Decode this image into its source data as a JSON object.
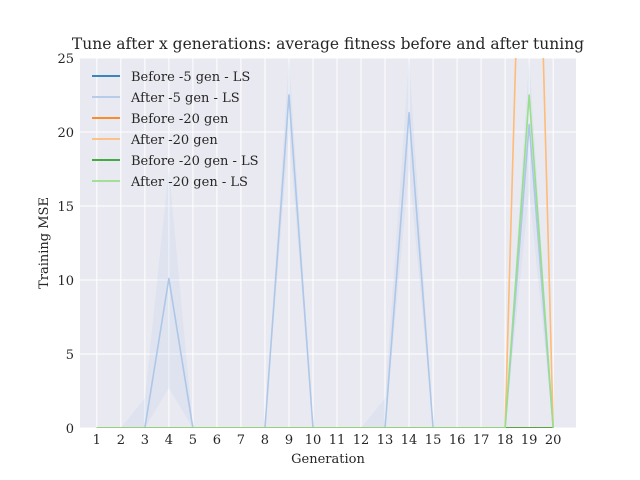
{
  "chart_data": {
    "type": "line",
    "title": "Tune after x generations: average fitness before and after tuning",
    "xlabel": "Generation",
    "ylabel": "Training MSE",
    "x": [
      1,
      2,
      3,
      4,
      5,
      6,
      7,
      8,
      9,
      10,
      11,
      12,
      13,
      14,
      15,
      16,
      17,
      18,
      19,
      20
    ],
    "xlim": [
      0.3,
      20.95
    ],
    "ylim": [
      0,
      25
    ],
    "yticks": [
      0,
      5,
      10,
      15,
      20,
      25
    ],
    "grid": true,
    "legend_position": "top-left",
    "background": "#e9e9f1",
    "series": [
      {
        "name": "Before -5 gen - LS",
        "color": "#1f77b4",
        "values": [
          0,
          0,
          0,
          0,
          0,
          0,
          0,
          0,
          0,
          0,
          0,
          0,
          0,
          0,
          0,
          0,
          0,
          0,
          0,
          0
        ]
      },
      {
        "name": "After -5 gen - LS",
        "color": "#aec7e8",
        "values": [
          0,
          0,
          0,
          10.1,
          0,
          0,
          0,
          0,
          22.5,
          0,
          0,
          0,
          0,
          21.3,
          0,
          0,
          0,
          0,
          20.5,
          0
        ],
        "band_upper": [
          0,
          0,
          2,
          17.5,
          0,
          0,
          0,
          0,
          25,
          0,
          0,
          0,
          2,
          25,
          0,
          0,
          0,
          0,
          25,
          0
        ],
        "band_lower": [
          0,
          0,
          0,
          2.7,
          0,
          0,
          0,
          0,
          20,
          0,
          0,
          0,
          0,
          17.5,
          0,
          0,
          0,
          0,
          16,
          0
        ]
      },
      {
        "name": "Before -20 gen",
        "color": "#ff7f0e",
        "values": [
          0,
          0,
          0,
          0,
          0,
          0,
          0,
          0,
          0,
          0,
          0,
          0,
          0,
          0,
          0,
          0,
          0,
          0,
          0,
          0
        ]
      },
      {
        "name": "After -20 gen",
        "color": "#ffbb78",
        "values": [
          0,
          0,
          0,
          0,
          0,
          0,
          0,
          0,
          0,
          0,
          0,
          0,
          0,
          0,
          0,
          0,
          0,
          0,
          0,
          0
        ],
        "segments": [
          [
            [
              18,
              0
            ],
            [
              18.45,
              25.6
            ]
          ],
          [
            [
              19.58,
              25.6
            ],
            [
              20,
              0
            ]
          ]
        ]
      },
      {
        "name": "Before -20 gen - LS",
        "color": "#2ca02c",
        "values": [
          0,
          0,
          0,
          0,
          0,
          0,
          0,
          0,
          0,
          0,
          0,
          0,
          0,
          0,
          0,
          0,
          0,
          0,
          0,
          0
        ]
      },
      {
        "name": "After -20 gen - LS",
        "color": "#98df8a",
        "values": [
          0,
          0,
          0,
          0,
          0,
          0,
          0,
          0,
          0,
          0,
          0,
          0,
          0,
          0,
          0,
          0,
          0,
          0,
          22.5,
          0
        ]
      }
    ]
  }
}
